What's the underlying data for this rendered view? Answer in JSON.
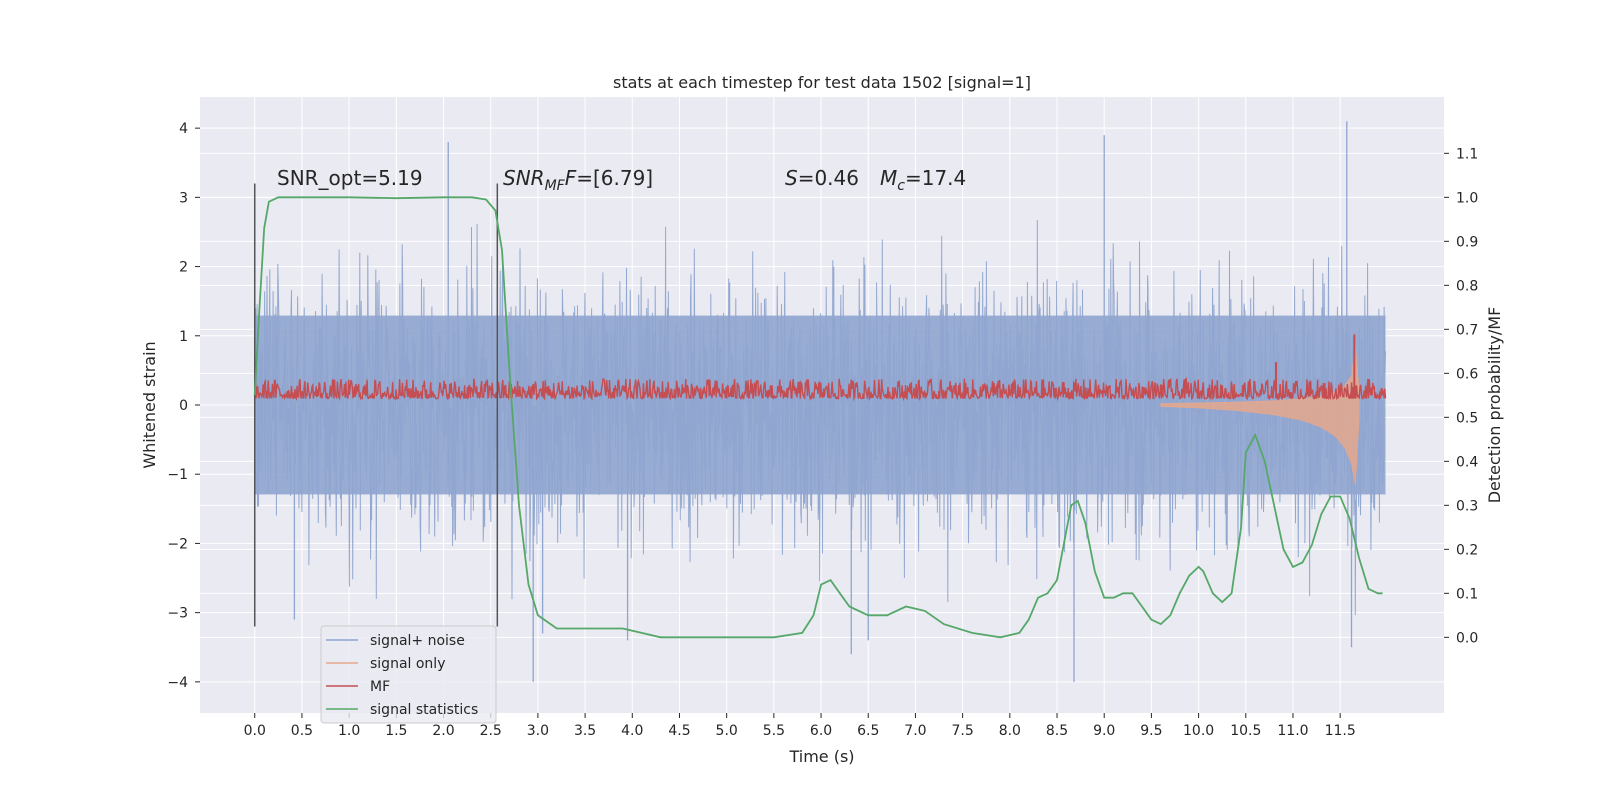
{
  "chart_data": {
    "type": "line",
    "title": "stats at each timestep for test data 1502 [signal=1]",
    "xlabel": "Time (s)",
    "ylabel": "Whitened strain",
    "y2label": "Detection probability/MF",
    "xlim": [
      -0.58,
      12.6
    ],
    "ylim": [
      -4.45,
      4.45
    ],
    "y2lim": [
      -0.172,
      1.228
    ],
    "xticks": [
      0.0,
      0.5,
      1.0,
      1.5,
      2.0,
      2.5,
      3.0,
      3.5,
      4.0,
      4.5,
      5.0,
      5.5,
      6.0,
      6.5,
      7.0,
      7.5,
      8.0,
      8.5,
      9.0,
      9.5,
      10.0,
      10.5,
      11.0,
      11.5
    ],
    "xtick_labels": [
      "0.0",
      "0.5",
      "1.0",
      "1.5",
      "2.0",
      "2.5",
      "3.0",
      "3.5",
      "4.0",
      "4.5",
      "5.0",
      "5.5",
      "6.0",
      "6.5",
      "7.0",
      "7.5",
      "8.0",
      "8.5",
      "9.0",
      "9.5",
      "10.0",
      "10.5",
      "11.0",
      "11.5"
    ],
    "yticks": [
      4,
      3,
      2,
      1,
      0,
      -1,
      -2,
      -3,
      -4
    ],
    "ytick_labels": [
      "4",
      "3",
      "2",
      "1",
      "0",
      "−1",
      "−2",
      "−3",
      "−4"
    ],
    "y2ticks": [
      1.1,
      1.0,
      0.9,
      0.8,
      0.7,
      0.6,
      0.5,
      0.4,
      0.3,
      0.2,
      0.1,
      0.0
    ],
    "y2tick_labels": [
      "1.1",
      "1.0",
      "0.9",
      "0.8",
      "0.7",
      "0.6",
      "0.5",
      "0.4",
      "0.3",
      "0.2",
      "0.1",
      "0.0"
    ],
    "grid": true,
    "legend_position": "bottom-left",
    "vlines": [
      0.0,
      2.57
    ],
    "vline_range": [
      -3.2,
      3.2
    ],
    "annotations": {
      "snr_opt": "SNR_opt=5.19",
      "snr_mf_label": "SNR",
      "snr_mf_sub": "MF",
      "snr_mf_sup": "F",
      "snr_mf_value": "=[6.79]",
      "s_label": "S",
      "s_value": "=0.46",
      "mc_label": "M",
      "mc_sub": "c",
      "mc_value": "=17.4"
    },
    "series": [
      {
        "name": "signal+ noise",
        "color": "#8fa5cf",
        "kind": "noise",
        "x_range": [
          0.0,
          11.98
        ],
        "typical_envelope": [
          -1.9,
          1.9
        ],
        "extremes": [
          {
            "x": 0.42,
            "y": -3.1
          },
          {
            "x": 2.05,
            "y": 3.8
          },
          {
            "x": 2.95,
            "y": -4.0
          },
          {
            "x": 3.05,
            "y": -3.3
          },
          {
            "x": 3.95,
            "y": -3.4
          },
          {
            "x": 6.32,
            "y": -3.6
          },
          {
            "x": 6.5,
            "y": -3.4
          },
          {
            "x": 8.68,
            "y": -4.0
          },
          {
            "x": 9.0,
            "y": 3.9
          },
          {
            "x": 11.57,
            "y": 4.1
          },
          {
            "x": 11.62,
            "y": -3.5
          }
        ]
      },
      {
        "name": "signal only",
        "color": "#e5a78c",
        "kind": "chirp",
        "x": [
          9.6,
          10.0,
          10.4,
          10.8,
          11.1,
          11.3,
          11.45,
          11.55,
          11.62,
          11.66,
          11.7
        ],
        "y_upper": [
          0.02,
          0.03,
          0.04,
          0.06,
          0.09,
          0.13,
          0.19,
          0.28,
          0.42,
          0.85,
          0.2
        ],
        "y_lower": [
          -0.02,
          -0.04,
          -0.08,
          -0.14,
          -0.22,
          -0.32,
          -0.45,
          -0.62,
          -0.85,
          -1.15,
          -0.2
        ]
      },
      {
        "name": "MF",
        "color": "#c44e52",
        "kind": "noise",
        "x_range": [
          0.0,
          11.98
        ],
        "typical_band": [
          0.02,
          0.38
        ],
        "spikes": [
          {
            "x": 10.82,
            "y": 0.62
          },
          {
            "x": 11.65,
            "y": 1.02
          }
        ]
      },
      {
        "name": "signal statistics",
        "color": "#55a868",
        "kind": "line",
        "axis": "y2",
        "x": [
          0.0,
          0.05,
          0.1,
          0.15,
          0.25,
          0.5,
          1.0,
          1.5,
          2.0,
          2.3,
          2.45,
          2.55,
          2.62,
          2.7,
          2.8,
          2.9,
          3.0,
          3.2,
          3.5,
          3.9,
          4.3,
          4.7,
          5.0,
          5.5,
          5.8,
          5.92,
          6.0,
          6.1,
          6.2,
          6.3,
          6.5,
          6.7,
          6.9,
          7.1,
          7.3,
          7.6,
          7.9,
          8.1,
          8.2,
          8.3,
          8.4,
          8.5,
          8.65,
          8.72,
          8.8,
          8.9,
          9.0,
          9.1,
          9.2,
          9.3,
          9.4,
          9.5,
          9.6,
          9.7,
          9.8,
          9.9,
          10.0,
          10.05,
          10.15,
          10.25,
          10.35,
          10.45,
          10.5,
          10.6,
          10.7,
          10.8,
          10.9,
          11.0,
          11.1,
          11.2,
          11.3,
          11.4,
          11.5,
          11.6,
          11.7,
          11.8,
          11.9,
          11.95
        ],
        "y": [
          0.55,
          0.75,
          0.93,
          0.99,
          1.0,
          1.0,
          1.0,
          0.998,
          1.0,
          1.0,
          0.995,
          0.97,
          0.88,
          0.6,
          0.3,
          0.12,
          0.05,
          0.02,
          0.02,
          0.02,
          0.0,
          0.0,
          0.0,
          0.0,
          0.01,
          0.05,
          0.12,
          0.13,
          0.1,
          0.07,
          0.05,
          0.05,
          0.07,
          0.06,
          0.03,
          0.01,
          0.0,
          0.01,
          0.04,
          0.09,
          0.1,
          0.13,
          0.3,
          0.31,
          0.26,
          0.15,
          0.09,
          0.09,
          0.1,
          0.1,
          0.07,
          0.04,
          0.03,
          0.05,
          0.1,
          0.14,
          0.16,
          0.15,
          0.1,
          0.08,
          0.1,
          0.25,
          0.42,
          0.46,
          0.4,
          0.3,
          0.2,
          0.16,
          0.17,
          0.21,
          0.28,
          0.32,
          0.32,
          0.27,
          0.18,
          0.11,
          0.1,
          0.1
        ]
      }
    ]
  }
}
